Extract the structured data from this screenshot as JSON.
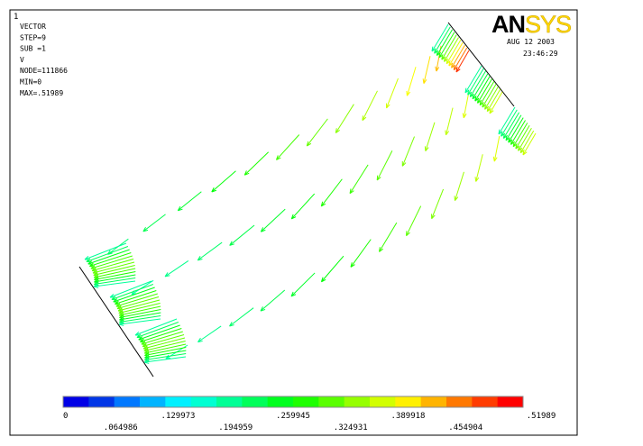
{
  "plot_number": "1",
  "info": [
    "VECTOR",
    "STEP=9",
    "SUB =1",
    "V",
    "NODE=111866",
    "MIN=0",
    "MAX=.51989"
  ],
  "logo": {
    "an": "AN",
    "sys": "SYS"
  },
  "date": "AUG 12 2003",
  "time": "23:46:29",
  "legend": {
    "labels": [
      "0",
      ".064986",
      ".129973",
      ".194959",
      ".259945",
      ".324931",
      ".389918",
      ".454904",
      ".51989"
    ]
  }
}
